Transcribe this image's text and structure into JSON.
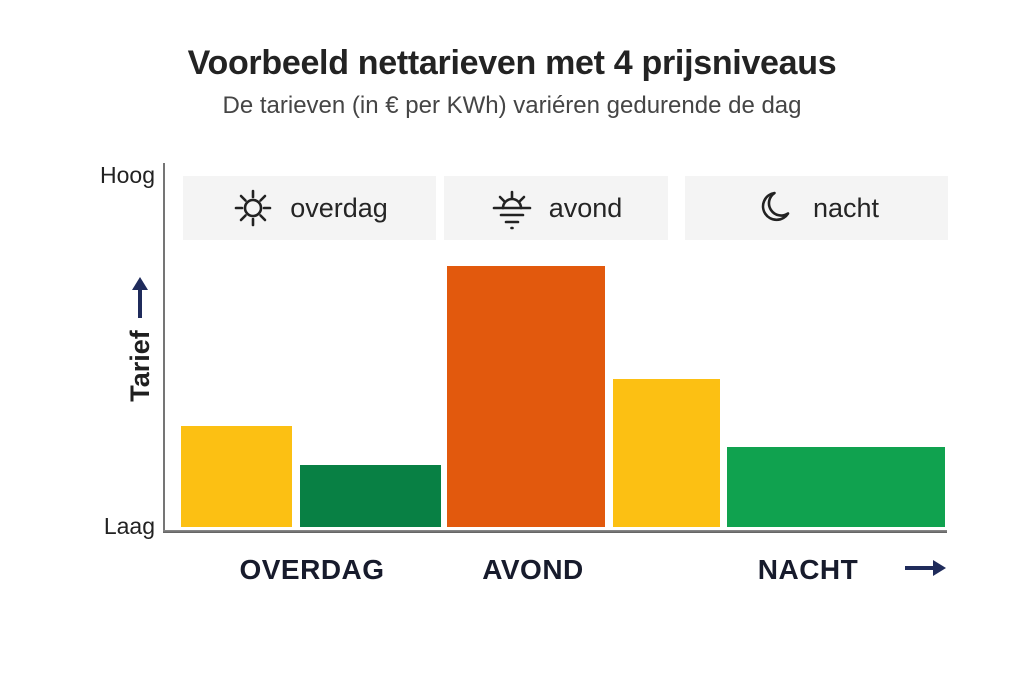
{
  "header": {
    "title": "Voorbeeld nettarieven met 4 prijsniveaus",
    "subtitle": "De tarieven (in € per KWh) variéren gedurende de dag"
  },
  "legend": [
    {
      "label": "overdag",
      "icon": "sun-icon"
    },
    {
      "label": "avond",
      "icon": "sunset-icon"
    },
    {
      "label": "nacht",
      "icon": "moon-icon"
    }
  ],
  "y_axis": {
    "top_label": "Hoog",
    "bottom_label": "Laag",
    "axis_title": "Tarief"
  },
  "x_axis": {
    "labels": [
      "OVERDAG",
      "AVOND",
      "NACHT"
    ]
  },
  "colors": {
    "yellow": "#FCC013",
    "dark_green": "#088044",
    "orange": "#E2590D",
    "light_green": "#10A24F",
    "navy_arrow": "#1F2B5B",
    "legend_background": "#f4f4f4"
  },
  "chart_data": {
    "type": "bar",
    "title": "Voorbeeld nettarieven met 4 prijsniveaus",
    "subtitle": "De tarieven (in € per KWh) variéren gedurende de dag",
    "price_levels": 4,
    "ylabel": "Tarief",
    "y_scale": "qualitative",
    "y_range": [
      "Laag",
      "Hoog"
    ],
    "categories": [
      "OVERDAG",
      "AVOND",
      "NACHT"
    ],
    "legend_position": "top",
    "grid": false,
    "bars": [
      {
        "period": "OVERDAG",
        "color": "#FCC013",
        "height": 0.28,
        "x": 0.023,
        "width": 0.142
      },
      {
        "period": "OVERDAG",
        "color": "#088044",
        "height": 0.17,
        "x": 0.175,
        "width": 0.179
      },
      {
        "period": "AVOND",
        "color": "#E2590D",
        "height": 0.72,
        "x": 0.362,
        "width": 0.202
      },
      {
        "period": "AVOND",
        "color": "#FCC013",
        "height": 0.41,
        "x": 0.574,
        "width": 0.137
      },
      {
        "period": "NACHT",
        "color": "#10A24F",
        "height": 0.22,
        "x": 0.719,
        "width": 0.279
      }
    ]
  }
}
